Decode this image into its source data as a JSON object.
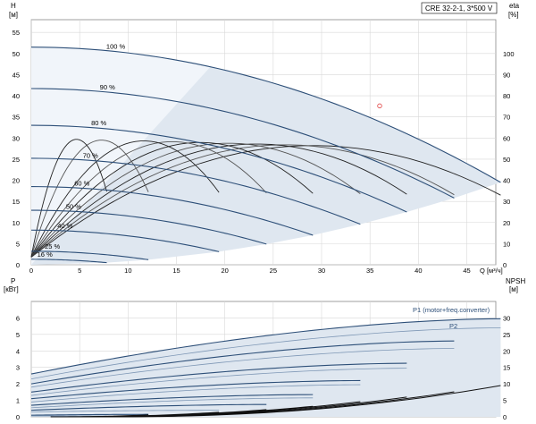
{
  "chart_data": [
    {
      "type": "line",
      "title": "CRE 32-2-1, 3*500 V",
      "y_left_label": "H",
      "y_left_unit": "[м]",
      "y_right_label": "eta",
      "y_right_unit": "[%]",
      "x_label": "Q",
      "x_unit": "[м³/ч]",
      "xlim": [
        0,
        48
      ],
      "ylim_left": [
        0,
        58
      ],
      "ylim_right": [
        0,
        116
      ],
      "x_ticks": [
        0,
        5,
        10,
        15,
        20,
        25,
        30,
        35,
        40,
        45
      ],
      "y_left_ticks": [
        0,
        5,
        10,
        15,
        20,
        25,
        30,
        35,
        40,
        45,
        50,
        55
      ],
      "y_right_ticks": [
        0,
        10,
        20,
        30,
        40,
        50,
        60,
        70,
        80,
        90,
        100
      ],
      "grid": true,
      "speed_curves": [
        {
          "label": "100 %",
          "h0": 51.5,
          "qmax": 48.5,
          "hend": 19.5
        },
        {
          "label": "90 %",
          "h0": 41.7,
          "qmax": 43.7,
          "hend": 15.8
        },
        {
          "label": "80 %",
          "h0": 33.0,
          "qmax": 38.8,
          "hend": 12.5
        },
        {
          "label": "70 %",
          "h0": 25.2,
          "qmax": 34.0,
          "hend": 9.6
        },
        {
          "label": "60 %",
          "h0": 18.5,
          "qmax": 29.1,
          "hend": 7.0
        },
        {
          "label": "50 %",
          "h0": 12.9,
          "qmax": 24.3,
          "hend": 4.9
        },
        {
          "label": "40 %",
          "h0": 8.2,
          "qmax": 19.4,
          "hend": 3.1
        },
        {
          "label": "25 %",
          "h0": 3.2,
          "qmax": 12.1,
          "hend": 1.2
        },
        {
          "label": "16 %",
          "h0": 1.3,
          "qmax": 7.8,
          "hend": 0.5
        }
      ],
      "marker_point": {
        "q": 36.0,
        "h": 37.6
      }
    },
    {
      "type": "line",
      "y_left_label": "P",
      "y_left_unit": "[кВт]",
      "y_right_label": "NPSH",
      "y_right_unit": "[м]",
      "xlim": [
        0,
        48
      ],
      "ylim_left": [
        0,
        7
      ],
      "ylim_right": [
        0,
        35
      ],
      "y_left_ticks": [
        0,
        1,
        2,
        3,
        4,
        5,
        6
      ],
      "y_right_ticks": [
        0,
        5,
        10,
        15,
        20,
        25,
        30
      ],
      "grid": true,
      "series_labels": {
        "p1": "P1 (motor+freq.converter)",
        "p2": "P2"
      },
      "power_curves": [
        {
          "p0": 2.6,
          "qmax": 48.5,
          "pend": 5.95
        },
        {
          "p0": 2.3,
          "qmax": 48.5,
          "pend": 5.4
        },
        {
          "p0": 2.0,
          "qmax": 43.7,
          "pend": 4.6
        },
        {
          "p0": 1.8,
          "qmax": 43.7,
          "pend": 4.15
        },
        {
          "p0": 1.5,
          "qmax": 38.8,
          "pend": 3.25
        },
        {
          "p0": 1.3,
          "qmax": 38.8,
          "pend": 2.95
        },
        {
          "p0": 1.1,
          "qmax": 34.0,
          "pend": 2.2
        },
        {
          "p0": 0.9,
          "qmax": 34.0,
          "pend": 1.95
        },
        {
          "p0": 0.7,
          "qmax": 29.1,
          "pend": 1.35
        },
        {
          "p0": 0.55,
          "qmax": 29.1,
          "pend": 1.15
        },
        {
          "p0": 0.4,
          "qmax": 24.3,
          "pend": 0.75
        },
        {
          "p0": 0.3,
          "qmax": 19.4,
          "pend": 0.4
        },
        {
          "p0": 0.1,
          "qmax": 12.1,
          "pend": 0.15
        },
        {
          "p0": 0.05,
          "qmax": 7.8,
          "pend": 0.05
        }
      ],
      "npsh_curves": [
        {
          "q0": 8.0,
          "qmax": 48.5,
          "nend": 9.5
        },
        {
          "q0": 7.0,
          "qmax": 43.7,
          "nend": 7.6
        },
        {
          "q0": 6.2,
          "qmax": 38.8,
          "nend": 6.0
        },
        {
          "q0": 5.4,
          "qmax": 34.0,
          "nend": 4.6
        },
        {
          "q0": 4.6,
          "qmax": 29.1,
          "nend": 3.2
        },
        {
          "q0": 3.8,
          "qmax": 24.3,
          "nend": 2.2
        },
        {
          "q0": 3.0,
          "qmax": 19.4,
          "nend": 1.4
        },
        {
          "q0": 2.0,
          "qmax": 12.1,
          "nend": 0.6
        }
      ]
    }
  ]
}
